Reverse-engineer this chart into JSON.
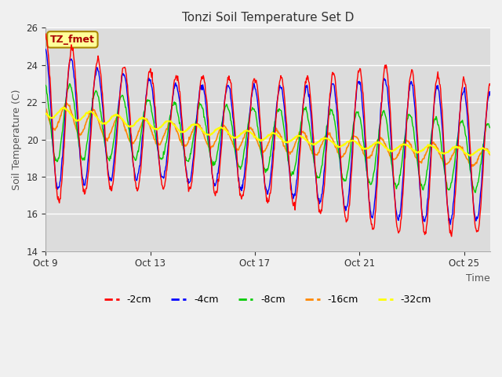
{
  "title": "Tonzi Soil Temperature Set D",
  "xlabel": "Time",
  "ylabel": "Soil Temperature (C)",
  "ylim": [
    14,
    26
  ],
  "yticks": [
    14,
    16,
    18,
    20,
    22,
    24,
    26
  ],
  "x_tick_labels": [
    "Oct 9",
    "Oct 13",
    "Oct 17",
    "Oct 21",
    "Oct 25"
  ],
  "x_tick_positions": [
    0,
    4,
    8,
    12,
    16
  ],
  "annotation_text": "TZ_fmet",
  "annotation_bg": "#FFFF99",
  "annotation_border": "#AA8800",
  "colors": {
    "-2cm": "#FF0000",
    "-4cm": "#0000FF",
    "-8cm": "#00CC00",
    "-16cm": "#FF8800",
    "-32cm": "#FFFF00"
  },
  "legend_labels": [
    "-2cm",
    "-4cm",
    "-8cm",
    "-16cm",
    "-32cm"
  ],
  "fig_bg": "#F0F0F0",
  "plot_bg": "#DCDCDC",
  "n_days": 17,
  "points_per_day": 48
}
